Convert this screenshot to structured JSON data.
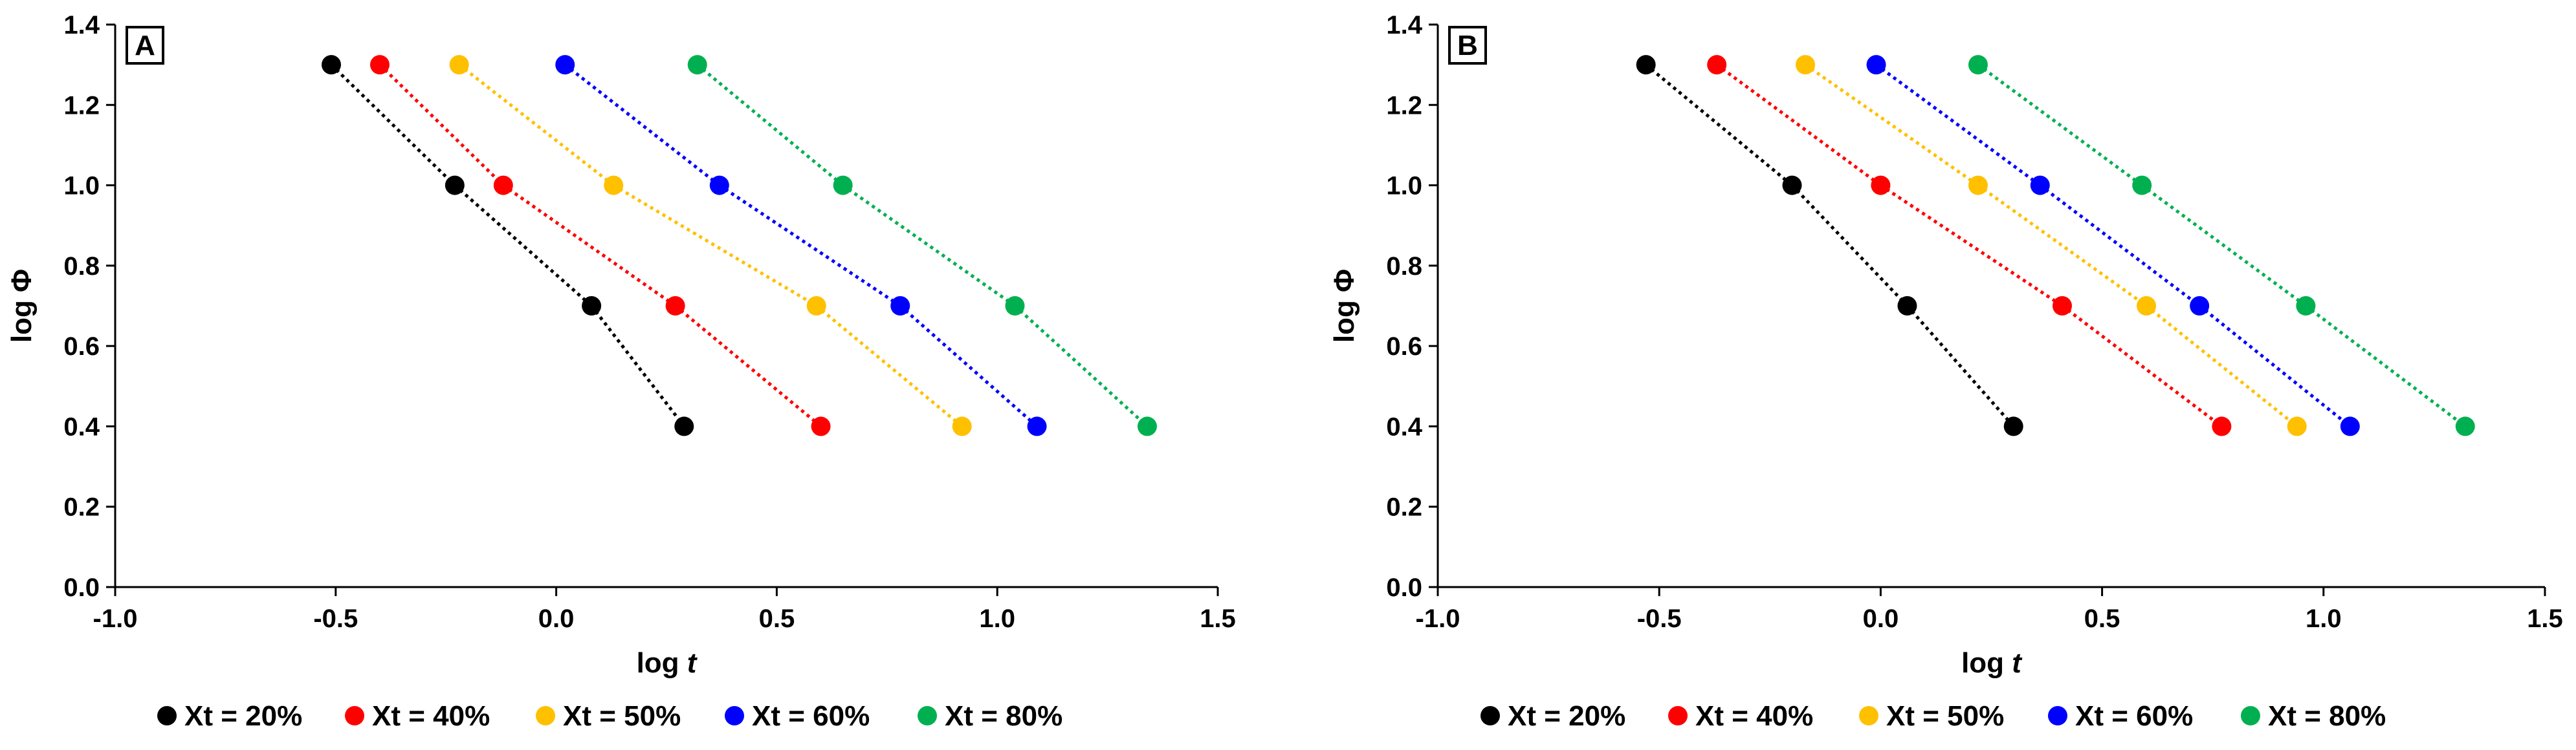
{
  "chart_data": [
    {
      "type": "scatter",
      "panel_label": "A",
      "xlabel": "log ",
      "xlabel_italic": "t",
      "ylabel": "log Φ",
      "xlim": [
        -1.0,
        1.5
      ],
      "ylim": [
        0.0,
        1.4
      ],
      "xticks": [
        "-1.0",
        "-0.5",
        "0.0",
        "0.5",
        "1.0",
        "1.5"
      ],
      "yticks": [
        "0.0",
        "0.2",
        "0.4",
        "0.6",
        "0.8",
        "1.0",
        "1.2",
        "1.4"
      ],
      "grid": false,
      "legend_position": "bottom",
      "trendlines": "dotted",
      "series": [
        {
          "name": "Xt = 20%",
          "color": "#000000",
          "x": [
            -0.51,
            -0.23,
            0.08,
            0.29
          ],
          "y": [
            1.3,
            1.0,
            0.7,
            0.4
          ]
        },
        {
          "name": "Xt = 40%",
          "color": "#ff0000",
          "x": [
            -0.4,
            -0.12,
            0.27,
            0.6
          ],
          "y": [
            1.3,
            1.0,
            0.7,
            0.4
          ]
        },
        {
          "name": "Xt = 50%",
          "color": "#ffc000",
          "x": [
            -0.22,
            0.13,
            0.59,
            0.92
          ],
          "y": [
            1.3,
            1.0,
            0.7,
            0.4
          ]
        },
        {
          "name": "Xt = 60%",
          "color": "#0000ff",
          "x": [
            0.02,
            0.37,
            0.78,
            1.09
          ],
          "y": [
            1.3,
            1.0,
            0.7,
            0.4
          ]
        },
        {
          "name": "Xt = 80%",
          "color": "#00b050",
          "x": [
            0.32,
            0.65,
            1.04,
            1.34
          ],
          "y": [
            1.3,
            1.0,
            0.7,
            0.4
          ]
        }
      ]
    },
    {
      "type": "scatter",
      "panel_label": "B",
      "xlabel": "log ",
      "xlabel_italic": "t",
      "ylabel": "log Φ",
      "xlim": [
        -1.0,
        1.5
      ],
      "ylim": [
        0.0,
        1.4
      ],
      "xticks": [
        "-1.0",
        "-0.5",
        "0.0",
        "0.5",
        "1.0",
        "1.5"
      ],
      "yticks": [
        "0.0",
        "0.2",
        "0.4",
        "0.6",
        "0.8",
        "1.0",
        "1.2",
        "1.4"
      ],
      "grid": false,
      "legend_position": "bottom",
      "trendlines": "dotted",
      "series": [
        {
          "name": "Xt = 20%",
          "color": "#000000",
          "x": [
            -0.53,
            -0.2,
            0.06,
            0.3
          ],
          "y": [
            1.3,
            1.0,
            0.7,
            0.4
          ]
        },
        {
          "name": "Xt = 40%",
          "color": "#ff0000",
          "x": [
            -0.37,
            0.0,
            0.41,
            0.77
          ],
          "y": [
            1.3,
            1.0,
            0.7,
            0.4
          ]
        },
        {
          "name": "Xt = 50%",
          "color": "#ffc000",
          "x": [
            -0.17,
            0.22,
            0.6,
            0.94
          ],
          "y": [
            1.3,
            1.0,
            0.7,
            0.4
          ]
        },
        {
          "name": "Xt = 60%",
          "color": "#0000ff",
          "x": [
            -0.01,
            0.36,
            0.72,
            1.06
          ],
          "y": [
            1.3,
            1.0,
            0.7,
            0.4
          ]
        },
        {
          "name": "Xt = 80%",
          "color": "#00b050",
          "x": [
            0.22,
            0.59,
            0.96,
            1.32
          ],
          "y": [
            1.3,
            1.0,
            0.7,
            0.4
          ]
        }
      ]
    }
  ]
}
